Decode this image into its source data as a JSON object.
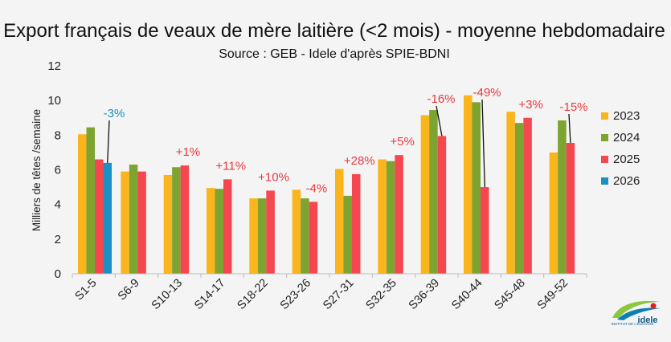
{
  "chart_data": {
    "type": "bar",
    "title": "Export français de veaux de mère laitière (<2 mois) - moyenne hebdomadaire",
    "subtitle": "Source : GEB - Idele d'après SPIE-BDNI",
    "xlabel": "",
    "ylabel": "Milliers de têtes /semaine",
    "ylim": [
      0,
      12
    ],
    "yticks": [
      0,
      2,
      4,
      6,
      8,
      10,
      12
    ],
    "grid": false,
    "legend_position": "right",
    "categories": [
      "S1-5",
      "S6-9",
      "S10-13",
      "S14-17",
      "S18-22",
      "S23-26",
      "S27-31",
      "S32-35",
      "S36-39",
      "S40-44",
      "S45-48",
      "S49-52"
    ],
    "series": [
      {
        "name": "2023",
        "color": "#f9b51b",
        "values": [
          8.05,
          5.9,
          5.7,
          4.95,
          4.35,
          4.85,
          6.05,
          6.6,
          9.15,
          10.3,
          9.35,
          7.0
        ]
      },
      {
        "name": "2024",
        "color": "#7da330",
        "values": [
          8.45,
          6.3,
          6.15,
          4.9,
          4.35,
          4.35,
          4.5,
          6.5,
          9.45,
          9.9,
          8.7,
          8.85
        ]
      },
      {
        "name": "2025",
        "color": "#f5474f",
        "values": [
          6.6,
          5.9,
          6.25,
          5.45,
          4.8,
          4.15,
          5.75,
          6.85,
          7.95,
          5.0,
          9.0,
          7.55
        ]
      },
      {
        "name": "2026",
        "color": "#1b90c4",
        "values": [
          6.4,
          null,
          null,
          null,
          null,
          null,
          null,
          null,
          null,
          null,
          null,
          null
        ]
      }
    ],
    "annotations": [
      {
        "category": "S1-5",
        "text": "-3%",
        "color": "#1b90c4",
        "leader": true
      },
      {
        "category": "S10-13",
        "text": "+1%",
        "color": "#e8393f",
        "leader": false
      },
      {
        "category": "S14-17",
        "text": "+11%",
        "color": "#e8393f",
        "leader": false
      },
      {
        "category": "S18-22",
        "text": "+10%",
        "color": "#e8393f",
        "leader": false
      },
      {
        "category": "S23-26",
        "text": "-4%",
        "color": "#e8393f",
        "leader": false
      },
      {
        "category": "S27-31",
        "text": "+28%",
        "color": "#e8393f",
        "leader": false
      },
      {
        "category": "S32-35",
        "text": "+5%",
        "color": "#e8393f",
        "leader": false
      },
      {
        "category": "S36-39",
        "text": "-16%",
        "color": "#e8393f",
        "leader": true
      },
      {
        "category": "S40-44",
        "text": "-49%",
        "color": "#e8393f",
        "leader": true
      },
      {
        "category": "S45-48",
        "text": "+3%",
        "color": "#e8393f",
        "leader": false
      },
      {
        "category": "S49-52",
        "text": "-15%",
        "color": "#e8393f",
        "leader": true
      }
    ]
  },
  "logo": {
    "text_top": "INSTITUT DE L'ÉLEVAGE",
    "text_main": "idele"
  }
}
